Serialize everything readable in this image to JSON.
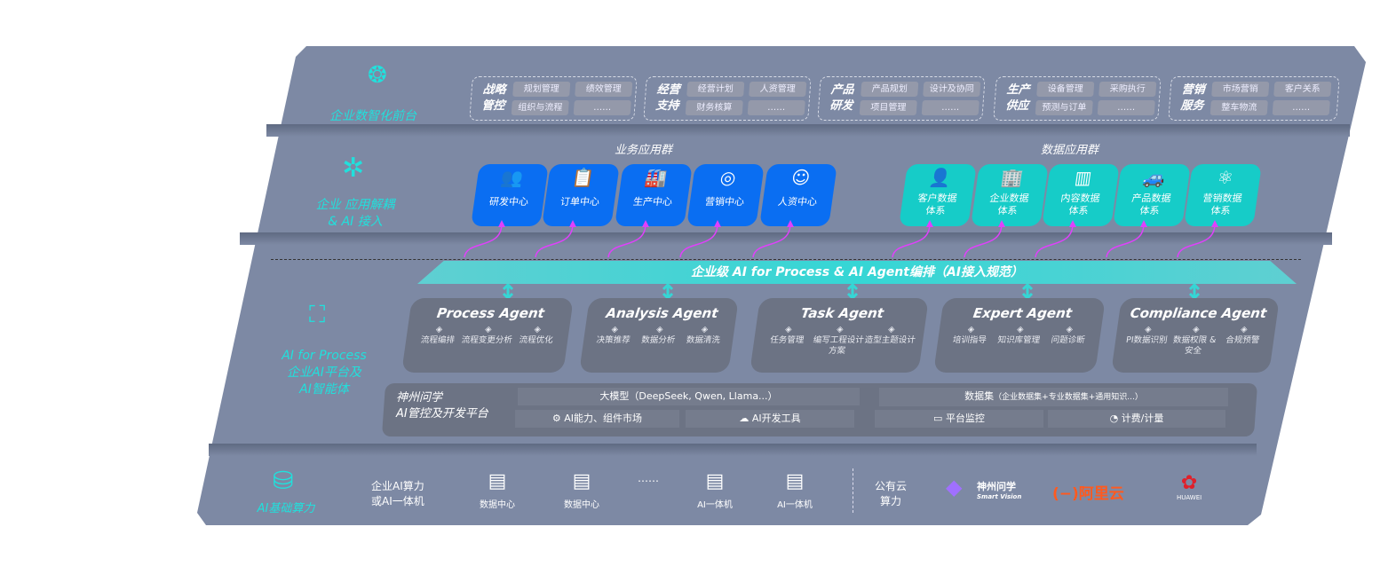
{
  "layers": {
    "front": {
      "label": "企业数智化前台",
      "icon": "brain-icon",
      "modules": [
        {
          "title": [
            "战略",
            "管控"
          ],
          "items": [
            "规划管理",
            "绩效管理",
            "组织与流程",
            "……"
          ]
        },
        {
          "title": [
            "经营",
            "支持"
          ],
          "items": [
            "经营计划",
            "人资管理",
            "财务核算",
            "……"
          ]
        },
        {
          "title": [
            "产品",
            "研发"
          ],
          "items": [
            "产品规划",
            "设计及协同",
            "项目管理",
            "……"
          ]
        },
        {
          "title": [
            "生产",
            "供应"
          ],
          "items": [
            "设备管理",
            "采购执行",
            "预测与订单",
            "……"
          ]
        },
        {
          "title": [
            "营销",
            "服务"
          ],
          "items": [
            "市场营销",
            "客户关系",
            "整车物流",
            "……"
          ]
        }
      ]
    },
    "apps": {
      "label": [
        "企业 应用解耦",
        "& AI 接入"
      ],
      "icon": "molecule-icon",
      "business_title": "业务应用群",
      "business": [
        {
          "label": "研发中心",
          "icon": "team-icon"
        },
        {
          "label": "订单中心",
          "icon": "clipboard-icon"
        },
        {
          "label": "生产中心",
          "icon": "factory-icon"
        },
        {
          "label": "营销中心",
          "icon": "target-icon"
        },
        {
          "label": "人资中心",
          "icon": "person-icon"
        }
      ],
      "data_title": "数据应用群",
      "data": [
        {
          "label": "客户数据体系",
          "icon": "user-icon"
        },
        {
          "label": "企业数据体系",
          "icon": "building-icon"
        },
        {
          "label": "内容数据体系",
          "icon": "books-icon"
        },
        {
          "label": "产品数据体系",
          "icon": "car-icon"
        },
        {
          "label": "营销数据体系",
          "icon": "atom-icon"
        }
      ]
    },
    "banner": "企业级 AI for Process & AI Agent编排（AI接入规范）",
    "ai": {
      "label": [
        "AI for Process",
        "企业AI平台及",
        "AI智能体"
      ],
      "icon": "face-scan-icon",
      "agents": [
        {
          "name": "Process Agent",
          "items": [
            "流程编排",
            "流程变更分析",
            "流程优化"
          ]
        },
        {
          "name": "Analysis Agent",
          "items": [
            "决策推荐",
            "数据分析",
            "数据清洗"
          ]
        },
        {
          "name": "Task Agent",
          "items": [
            "任务管理",
            "编写工程设计方案",
            "造型主题设计"
          ]
        },
        {
          "name": "Expert Agent",
          "items": [
            "培训指导",
            "知识库管理",
            "问题诊断"
          ]
        },
        {
          "name": "Compliance Agent",
          "items": [
            "PI数据识别",
            "数据权限 & 安全",
            "合规预警"
          ]
        }
      ],
      "platform": {
        "title": [
          "神州问学",
          "AI管控及开发平台"
        ],
        "model": "大模型（DeepSeek, Qwen, Llama...）",
        "market": "AI能力、组件市场",
        "devtools": "AI开发工具",
        "dataset": "数据集",
        "dataset_note": "（企业数据集+专业数据集+通用知识...）",
        "monitor": "平台监控",
        "billing": "计费/计量"
      }
    },
    "base": {
      "label": "AI基础算力",
      "icon": "database-icon",
      "onprem": [
        "企业AI算力",
        "或AI一体机"
      ],
      "servers": [
        "数据中心",
        "数据中心",
        "……",
        "AI一体机",
        "AI一体机"
      ],
      "cloud": [
        "公有云",
        "算力"
      ],
      "vendors": [
        "神州问学",
        "Smart Vision",
        "阿里云",
        "HUAWEI"
      ]
    }
  },
  "colors": {
    "platform": "#7d89a4",
    "accent": "#21e0dc",
    "blue": "#0a6ef2",
    "teal": "#16ccc8",
    "arrow": "#e040fb"
  }
}
